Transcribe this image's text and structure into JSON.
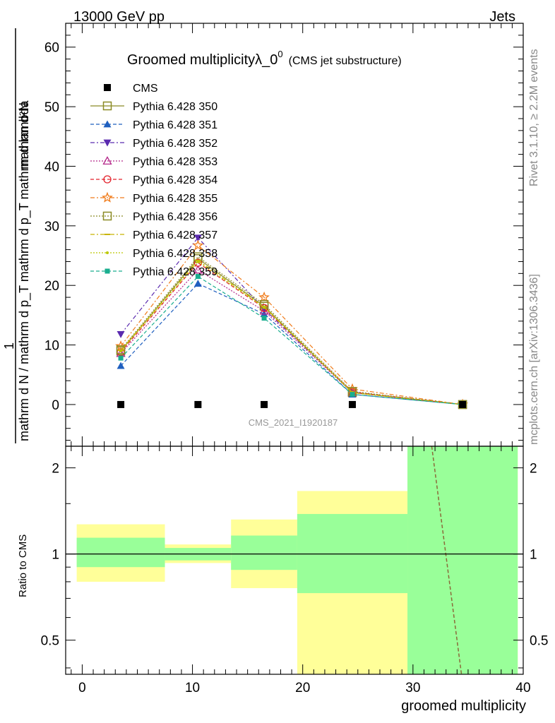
{
  "header": {
    "left": "13000 GeV pp",
    "right": "Jets"
  },
  "side_labels": {
    "rivet": "Rivet 3.1.10, ≥ 2.2M events",
    "mcplots": "mcplots.cern.ch [arXiv:1306.3436]"
  },
  "watermark": "CMS_2021_I1920187",
  "chart_data": {
    "type": "line",
    "title": "Groomed multiplicityλ_0",
    "title_sup": "0",
    "subtitle": "(CMS jet substructure)",
    "xlabel": "groomed multiplicity",
    "ylabel_top": "1",
    "ylabel_bottom": "mathrm d N / mathrm d p_T mathrm d p_T mathrm d lambda",
    "ylabel_numerator": "mathrm d²N",
    "ratio_ylabel": "Ratio to CMS",
    "xlim": [
      -1.5,
      40
    ],
    "ylim": [
      -7,
      64
    ],
    "ratio_ylim": [
      0.38,
      2.38
    ],
    "x_ticks": [
      0,
      10,
      20,
      30,
      40
    ],
    "y_ticks": [
      0,
      10,
      20,
      30,
      40,
      50,
      60
    ],
    "ratio_ticks": [
      0.5,
      1,
      2
    ],
    "legend_position": "top-left",
    "bins": [
      {
        "lo": -0.5,
        "hi": 7.5,
        "x": 3.5
      },
      {
        "lo": 7.5,
        "hi": 13.5,
        "x": 10.5
      },
      {
        "lo": 13.5,
        "hi": 19.5,
        "x": 16.5
      },
      {
        "lo": 19.5,
        "hi": 29.5,
        "x": 24.5
      },
      {
        "lo": 29.5,
        "hi": 39.5,
        "x": 34.5
      }
    ],
    "data": {
      "name": "CMS",
      "values": [
        0,
        0,
        0,
        0,
        0
      ]
    },
    "series": [
      {
        "name": "Pythia 6.428 350",
        "color": "#8b8b26",
        "dash": "",
        "marker": "square-open",
        "values": [
          9.0,
          24.5,
          16.5,
          2.0,
          0.0
        ]
      },
      {
        "name": "Pythia 6.428 351",
        "color": "#1f5fbf",
        "dash": "5,3",
        "marker": "triangle-up",
        "values": [
          6.5,
          20.3,
          15.2,
          1.7,
          0.0
        ]
      },
      {
        "name": "Pythia 6.428 352",
        "color": "#5a2aaf",
        "dash": "6,3,2,3",
        "marker": "triangle-down",
        "values": [
          11.8,
          28.0,
          16.0,
          2.1,
          0.0
        ]
      },
      {
        "name": "Pythia 6.428 353",
        "color": "#b5288a",
        "dash": "2,2",
        "marker": "triangle-up-open",
        "values": [
          8.6,
          22.6,
          15.7,
          2.0,
          0.0
        ]
      },
      {
        "name": "Pythia 6.428 354",
        "color": "#e3222b",
        "dash": "5,3",
        "marker": "circle-open",
        "values": [
          8.8,
          23.8,
          16.2,
          2.1,
          0.0
        ]
      },
      {
        "name": "Pythia 6.428 355",
        "color": "#f07b1a",
        "dash": "6,3,2,3",
        "marker": "star-open",
        "values": [
          9.8,
          26.7,
          18.0,
          2.6,
          0.0
        ]
      },
      {
        "name": "Pythia 6.428 356",
        "color": "#8b8b26",
        "dash": "2,2",
        "marker": "square-open",
        "values": [
          9.2,
          24.8,
          16.8,
          2.2,
          0.0
        ]
      },
      {
        "name": "Pythia 6.428 357",
        "color": "#c8b400",
        "dash": "6,3,2,3",
        "marker": "dash",
        "values": [
          9.1,
          24.2,
          16.4,
          2.0,
          0.0
        ]
      },
      {
        "name": "Pythia 6.428 358",
        "color": "#bcc800",
        "dash": "2,2",
        "marker": "dot",
        "values": [
          9.0,
          24.0,
          16.3,
          2.0,
          0.0
        ]
      },
      {
        "name": "Pythia 6.428 359",
        "color": "#1aae8f",
        "dash": "5,3",
        "marker": "square",
        "values": [
          7.8,
          21.5,
          14.5,
          1.7,
          0.0
        ]
      }
    ],
    "ratio_bands": {
      "yellow": [
        {
          "lo": 0.8,
          "hi": 1.27
        },
        {
          "lo": 0.93,
          "hi": 1.08
        },
        {
          "lo": 0.76,
          "hi": 1.32
        },
        {
          "lo": 0.38,
          "hi": 1.66
        },
        {
          "lo": 0.38,
          "hi": 2.38
        }
      ],
      "green": [
        {
          "lo": 0.9,
          "hi": 1.14
        },
        {
          "lo": 0.95,
          "hi": 1.05
        },
        {
          "lo": 0.88,
          "hi": 1.16
        },
        {
          "lo": 0.73,
          "hi": 1.38
        },
        {
          "lo": 0.38,
          "hi": 2.38
        }
      ]
    },
    "ratio_line": {
      "x": [
        31.7,
        34.4
      ],
      "y": [
        2.38,
        0.38
      ],
      "color": "#8b6a3a"
    }
  }
}
